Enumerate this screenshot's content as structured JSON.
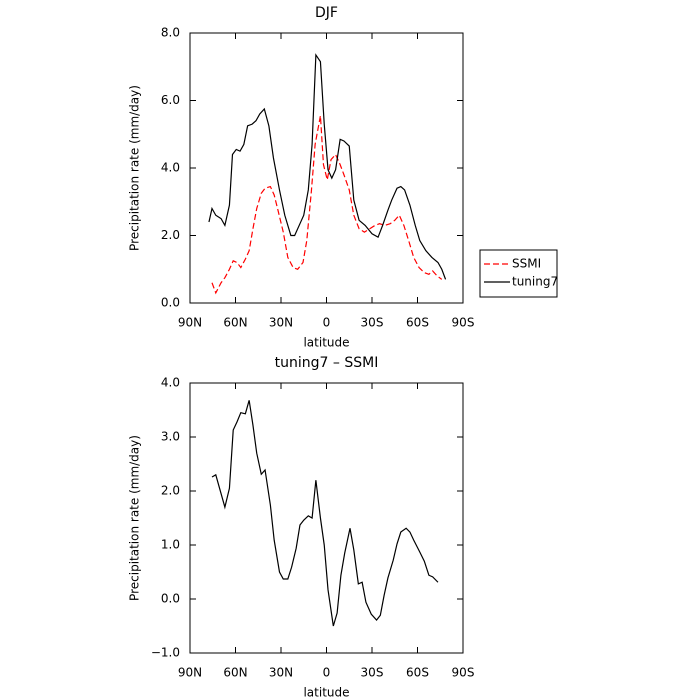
{
  "chart_data": [
    {
      "type": "line",
      "title": "DJF",
      "x_label": "latitude",
      "y_label": "Precipitation rate (mm/day)",
      "xlim": [
        90,
        -90
      ],
      "xticks": [
        {
          "value": 90,
          "label": "90N"
        },
        {
          "value": 60,
          "label": "60N"
        },
        {
          "value": 30,
          "label": "30N"
        },
        0,
        {
          "value": -30,
          "label": "30S"
        },
        {
          "value": -60,
          "label": "60S"
        },
        {
          "value": -90,
          "label": "90S"
        }
      ],
      "ylim": [
        0,
        8
      ],
      "yticks": [
        {
          "value": 0,
          "label": "0.0"
        },
        {
          "value": 2,
          "label": "2.0"
        },
        {
          "value": 4,
          "label": "4.0"
        },
        {
          "value": 6,
          "label": "6.0"
        },
        {
          "value": 8,
          "label": "8.0"
        }
      ],
      "legend": "outside-right",
      "series": [
        {
          "name": "SSMI",
          "color": "#ff0000",
          "dashed": true,
          "x": [
            75.5,
            73,
            69.5,
            67,
            64,
            61.5,
            59,
            56.5,
            53.5,
            51,
            48.5,
            46,
            43,
            40.5,
            37,
            34.5,
            32,
            28.5,
            25.5,
            22,
            19,
            15.5,
            13,
            10,
            7.5,
            4,
            2,
            -0.5,
            -3,
            -6,
            -9,
            -11.5,
            -15,
            -18,
            -21.5,
            -25,
            -28.5,
            -32,
            -35,
            -38.5,
            -42,
            -45,
            -48,
            -51,
            -54.5,
            -57.5,
            -61,
            -64.5,
            -67.5,
            -70,
            -73,
            -76
          ],
          "values": [
            0.6,
            0.3,
            0.6,
            0.75,
            1.0,
            1.25,
            1.2,
            1.05,
            1.3,
            1.55,
            2.2,
            2.8,
            3.25,
            3.4,
            3.45,
            3.2,
            2.75,
            2.1,
            1.35,
            1.05,
            1.0,
            1.2,
            1.85,
            3.3,
            4.7,
            5.55,
            4.1,
            3.65,
            4.25,
            4.4,
            4.1,
            3.8,
            3.35,
            2.6,
            2.2,
            2.1,
            2.2,
            2.3,
            2.35,
            2.3,
            2.35,
            2.45,
            2.6,
            2.3,
            1.8,
            1.35,
            1.05,
            0.9,
            0.85,
            0.95,
            0.8,
            0.7
          ]
        },
        {
          "name": "tuning7",
          "color": "#000000",
          "dashed": false,
          "x": [
            77.5,
            75.5,
            73,
            69.5,
            67,
            64,
            62,
            59.5,
            57,
            54.5,
            52,
            49,
            46.5,
            44,
            41,
            38,
            35,
            31,
            27.5,
            23.5,
            21,
            17.5,
            15,
            12,
            9.5,
            7,
            4,
            1.5,
            -1,
            -3.5,
            -6,
            -9,
            -11.5,
            -15,
            -18,
            -21.5,
            -25.5,
            -30,
            -34,
            -37,
            -40.5,
            -43,
            -46.5,
            -49,
            -51.5,
            -55,
            -58.5,
            -61.5,
            -65.5,
            -69.5,
            -73.5,
            -76,
            -78.5
          ],
          "values": [
            2.4,
            2.8,
            2.6,
            2.5,
            2.3,
            2.9,
            4.4,
            4.55,
            4.5,
            4.7,
            5.25,
            5.3,
            5.4,
            5.6,
            5.75,
            5.25,
            4.3,
            3.35,
            2.6,
            2.0,
            2.0,
            2.35,
            2.6,
            3.35,
            4.7,
            7.35,
            7.15,
            5.3,
            3.95,
            3.7,
            3.95,
            4.85,
            4.8,
            4.65,
            3.05,
            2.45,
            2.3,
            2.05,
            1.95,
            2.3,
            2.75,
            3.05,
            3.4,
            3.45,
            3.35,
            2.9,
            2.3,
            1.85,
            1.55,
            1.35,
            1.2,
            1.0,
            0.7
          ]
        }
      ]
    },
    {
      "type": "line",
      "title": "tuning7 – SSMI",
      "x_label": "latitude",
      "y_label": "Precipitation rate (mm/day)",
      "xlim": [
        90,
        -90
      ],
      "xticks": [
        {
          "value": 90,
          "label": "90N"
        },
        {
          "value": 60,
          "label": "60N"
        },
        {
          "value": 30,
          "label": "30N"
        },
        0,
        {
          "value": -30,
          "label": "30S"
        },
        {
          "value": -60,
          "label": "60S"
        },
        {
          "value": -90,
          "label": "90S"
        }
      ],
      "ylim": [
        -1,
        4
      ],
      "yticks": [
        {
          "value": -1,
          "label": "−1.0"
        },
        {
          "value": 0,
          "label": "0.0"
        },
        {
          "value": 1,
          "label": "1.0"
        },
        {
          "value": 2,
          "label": "2.0"
        },
        {
          "value": 3,
          "label": "3.0"
        },
        {
          "value": 4,
          "label": "4.0"
        }
      ],
      "series": [
        {
          "color": "#000000",
          "dashed": false,
          "x": [
            75.5,
            73,
            67,
            64,
            61.5,
            59,
            56.5,
            53.5,
            51,
            48.5,
            46,
            43,
            40.5,
            37,
            34.5,
            31,
            28.5,
            25.5,
            23,
            20,
            17.5,
            15,
            12,
            9.5,
            7,
            4,
            1.5,
            -1,
            -4.5,
            -7,
            -9.5,
            -12,
            -15.5,
            -18,
            -21,
            -23.5,
            -26,
            -29.5,
            -33,
            -35.5,
            -38,
            -40.5,
            -44,
            -46.5,
            -49,
            -52.5,
            -55,
            -57.5,
            -61.5,
            -64.5,
            -67.5,
            -70,
            -73.5
          ],
          "values": [
            2.26,
            2.3,
            1.7,
            2.05,
            3.13,
            3.28,
            3.45,
            3.43,
            3.68,
            3.22,
            2.7,
            2.31,
            2.39,
            1.74,
            1.09,
            0.5,
            0.37,
            0.37,
            0.59,
            0.94,
            1.37,
            1.46,
            1.54,
            1.5,
            2.2,
            1.5,
            1.0,
            0.17,
            -0.5,
            -0.26,
            0.44,
            0.85,
            1.31,
            0.91,
            0.28,
            0.31,
            -0.06,
            -0.28,
            -0.39,
            -0.3,
            0.07,
            0.39,
            0.72,
            1.02,
            1.24,
            1.31,
            1.24,
            1.09,
            0.87,
            0.7,
            0.44,
            0.41,
            0.31
          ]
        }
      ]
    }
  ]
}
